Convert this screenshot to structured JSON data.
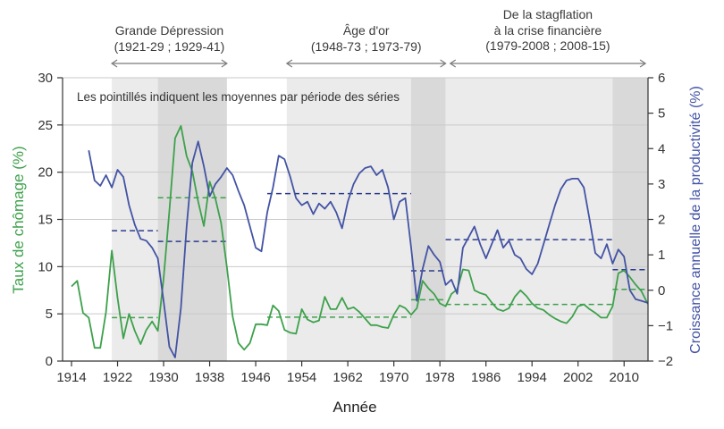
{
  "note": "Les pointillés indiquent les moyennes par période des séries",
  "annotations": [
    {
      "lines": [
        "Grande Dépression",
        "(1921-29 ; 1929-41)"
      ],
      "span_years": [
        1921,
        1941
      ]
    },
    {
      "lines": [
        "Âge d'or",
        "(1948-73 ; 1973-79)"
      ],
      "span_years": [
        1951.4,
        1979
      ]
    },
    {
      "lines": [
        "De la stagflation",
        "à la crise financière",
        "(1979-2008 ; 2008-15)"
      ],
      "span_years": [
        1979.8,
        2013.7
      ]
    }
  ],
  "chart_data": {
    "type": "line",
    "xlabel": "Année",
    "ylabel_left": "Taux de chômage (%)",
    "ylabel_right": "Croissance annuelle de la productivité (%)",
    "x_ticks": [
      1914,
      1922,
      1930,
      1938,
      1946,
      1954,
      1962,
      1970,
      1978,
      1986,
      1994,
      2002,
      2010
    ],
    "y_left": {
      "min": 0,
      "max": 30,
      "ticks": [
        0,
        5,
        10,
        15,
        20,
        25,
        30
      ]
    },
    "y_right": {
      "min": -2,
      "max": 6,
      "ticks": [
        -2,
        -1,
        0,
        1,
        2,
        3,
        4,
        5,
        6
      ]
    },
    "grid": true,
    "gridlines_left_values": [
      5,
      10,
      15,
      20,
      25,
      30
    ],
    "legend_position": "none",
    "bands": [
      {
        "from": 1921,
        "to": 1929,
        "shade": "light"
      },
      {
        "from": 1929,
        "to": 1941,
        "shade": "dark"
      },
      {
        "from": 1951.4,
        "to": 1973,
        "shade": "light"
      },
      {
        "from": 1973,
        "to": 1979,
        "shade": "dark"
      },
      {
        "from": 1979,
        "to": 2008,
        "shade": "light"
      },
      {
        "from": 2008,
        "to": 2015.3,
        "shade": "dark"
      }
    ],
    "series": [
      {
        "name": "Taux de chômage",
        "axis": "left",
        "points": [
          [
            1914,
            7.9
          ],
          [
            1915,
            8.5
          ],
          [
            1916,
            5.1
          ],
          [
            1917,
            4.6
          ],
          [
            1918,
            1.4
          ],
          [
            1919,
            1.4
          ],
          [
            1920,
            5.2
          ],
          [
            1921,
            11.7
          ],
          [
            1922,
            6.7
          ],
          [
            1923,
            2.4
          ],
          [
            1924,
            5.0
          ],
          [
            1925,
            3.2
          ],
          [
            1926,
            1.8
          ],
          [
            1927,
            3.3
          ],
          [
            1928,
            4.2
          ],
          [
            1929,
            3.2
          ],
          [
            1930,
            8.7
          ],
          [
            1931,
            15.9
          ],
          [
            1932,
            23.6
          ],
          [
            1933,
            24.9
          ],
          [
            1934,
            21.7
          ],
          [
            1935,
            20.1
          ],
          [
            1936,
            16.9
          ],
          [
            1937,
            14.3
          ],
          [
            1938,
            19.0
          ],
          [
            1939,
            17.2
          ],
          [
            1940,
            14.6
          ],
          [
            1941,
            9.9
          ],
          [
            1942,
            4.7
          ],
          [
            1943,
            1.9
          ],
          [
            1944,
            1.2
          ],
          [
            1945,
            1.9
          ],
          [
            1946,
            3.9
          ],
          [
            1947,
            3.9
          ],
          [
            1948,
            3.8
          ],
          [
            1949,
            5.9
          ],
          [
            1950,
            5.3
          ],
          [
            1951,
            3.3
          ],
          [
            1952,
            3.0
          ],
          [
            1953,
            2.9
          ],
          [
            1954,
            5.5
          ],
          [
            1955,
            4.4
          ],
          [
            1956,
            4.1
          ],
          [
            1957,
            4.3
          ],
          [
            1958,
            6.8
          ],
          [
            1959,
            5.5
          ],
          [
            1960,
            5.5
          ],
          [
            1961,
            6.7
          ],
          [
            1962,
            5.5
          ],
          [
            1963,
            5.7
          ],
          [
            1964,
            5.2
          ],
          [
            1965,
            4.5
          ],
          [
            1966,
            3.8
          ],
          [
            1967,
            3.8
          ],
          [
            1968,
            3.6
          ],
          [
            1969,
            3.5
          ],
          [
            1970,
            4.9
          ],
          [
            1971,
            5.9
          ],
          [
            1972,
            5.6
          ],
          [
            1973,
            4.9
          ],
          [
            1974,
            5.6
          ],
          [
            1975,
            8.5
          ],
          [
            1976,
            7.7
          ],
          [
            1977,
            7.1
          ],
          [
            1978,
            6.1
          ],
          [
            1979,
            5.8
          ],
          [
            1980,
            7.1
          ],
          [
            1981,
            7.6
          ],
          [
            1982,
            9.7
          ],
          [
            1983,
            9.6
          ],
          [
            1984,
            7.5
          ],
          [
            1985,
            7.2
          ],
          [
            1986,
            7.0
          ],
          [
            1987,
            6.2
          ],
          [
            1988,
            5.5
          ],
          [
            1989,
            5.3
          ],
          [
            1990,
            5.6
          ],
          [
            1991,
            6.8
          ],
          [
            1992,
            7.5
          ],
          [
            1993,
            6.9
          ],
          [
            1994,
            6.1
          ],
          [
            1995,
            5.6
          ],
          [
            1996,
            5.4
          ],
          [
            1997,
            4.9
          ],
          [
            1998,
            4.5
          ],
          [
            1999,
            4.2
          ],
          [
            2000,
            4.0
          ],
          [
            2001,
            4.7
          ],
          [
            2002,
            5.8
          ],
          [
            2003,
            6.0
          ],
          [
            2004,
            5.5
          ],
          [
            2005,
            5.1
          ],
          [
            2006,
            4.6
          ],
          [
            2007,
            4.6
          ],
          [
            2008,
            5.8
          ],
          [
            2009,
            9.3
          ],
          [
            2010,
            9.6
          ],
          [
            2011,
            8.9
          ],
          [
            2012,
            8.1
          ],
          [
            2013,
            7.4
          ],
          [
            2014,
            6.2
          ],
          [
            2015,
            5.3
          ]
        ]
      },
      {
        "name": "Croissance annuelle de la productivité",
        "axis": "right",
        "points": [
          [
            1917,
            3.95
          ],
          [
            1918,
            3.1
          ],
          [
            1919,
            2.95
          ],
          [
            1920,
            3.25
          ],
          [
            1921,
            2.9
          ],
          [
            1922,
            3.4
          ],
          [
            1923,
            3.2
          ],
          [
            1924,
            2.4
          ],
          [
            1925,
            1.85
          ],
          [
            1926,
            1.45
          ],
          [
            1927,
            1.4
          ],
          [
            1928,
            1.2
          ],
          [
            1929,
            0.9
          ],
          [
            1930,
            -0.3
          ],
          [
            1931,
            -1.6
          ],
          [
            1932,
            -1.9
          ],
          [
            1933,
            -0.5
          ],
          [
            1934,
            1.8
          ],
          [
            1935,
            3.6
          ],
          [
            1936,
            4.2
          ],
          [
            1937,
            3.5
          ],
          [
            1938,
            2.65
          ],
          [
            1939,
            3.0
          ],
          [
            1940,
            3.2
          ],
          [
            1941,
            3.45
          ],
          [
            1942,
            3.25
          ],
          [
            1943,
            2.8
          ],
          [
            1944,
            2.4
          ],
          [
            1945,
            1.8
          ],
          [
            1946,
            1.2
          ],
          [
            1947,
            1.1
          ],
          [
            1948,
            2.2
          ],
          [
            1949,
            2.9
          ],
          [
            1950,
            3.8
          ],
          [
            1951,
            3.7
          ],
          [
            1952,
            3.2
          ],
          [
            1953,
            2.6
          ],
          [
            1954,
            2.4
          ],
          [
            1955,
            2.5
          ],
          [
            1956,
            2.15
          ],
          [
            1957,
            2.45
          ],
          [
            1958,
            2.3
          ],
          [
            1959,
            2.5
          ],
          [
            1960,
            2.2
          ],
          [
            1961,
            1.75
          ],
          [
            1962,
            2.5
          ],
          [
            1963,
            3.0
          ],
          [
            1964,
            3.3
          ],
          [
            1965,
            3.45
          ],
          [
            1966,
            3.5
          ],
          [
            1967,
            3.25
          ],
          [
            1968,
            3.4
          ],
          [
            1969,
            2.9
          ],
          [
            1970,
            2.0
          ],
          [
            1971,
            2.5
          ],
          [
            1972,
            2.6
          ],
          [
            1973,
            1.2
          ],
          [
            1974,
            -0.3
          ],
          [
            1975,
            0.6
          ],
          [
            1976,
            1.25
          ],
          [
            1977,
            1.0
          ],
          [
            1978,
            0.8
          ],
          [
            1979,
            0.15
          ],
          [
            1980,
            0.3
          ],
          [
            1981,
            -0.1
          ],
          [
            1982,
            1.2
          ],
          [
            1983,
            1.5
          ],
          [
            1984,
            1.8
          ],
          [
            1985,
            1.3
          ],
          [
            1986,
            0.9
          ],
          [
            1987,
            1.3
          ],
          [
            1988,
            1.7
          ],
          [
            1989,
            1.2
          ],
          [
            1990,
            1.4
          ],
          [
            1991,
            1.0
          ],
          [
            1992,
            0.9
          ],
          [
            1993,
            0.6
          ],
          [
            1994,
            0.45
          ],
          [
            1995,
            0.75
          ],
          [
            1996,
            1.3
          ],
          [
            1997,
            1.85
          ],
          [
            1998,
            2.4
          ],
          [
            1999,
            2.85
          ],
          [
            2000,
            3.1
          ],
          [
            2001,
            3.15
          ],
          [
            2002,
            3.15
          ],
          [
            2003,
            2.9
          ],
          [
            2004,
            2.0
          ],
          [
            2005,
            1.05
          ],
          [
            2006,
            0.9
          ],
          [
            2007,
            1.3
          ],
          [
            2008,
            0.75
          ],
          [
            2009,
            1.15
          ],
          [
            2010,
            0.95
          ],
          [
            2011,
            0.0
          ],
          [
            2012,
            -0.25
          ],
          [
            2013,
            -0.3
          ],
          [
            2014,
            -0.35
          ],
          [
            2015,
            -0.42
          ]
        ]
      }
    ],
    "period_means": {
      "unemployment": [
        {
          "from": 1921,
          "to": 1929,
          "value": 4.6
        },
        {
          "from": 1929,
          "to": 1941,
          "value": 17.3
        },
        {
          "from": 1948,
          "to": 1973,
          "value": 4.65
        },
        {
          "from": 1973,
          "to": 1979,
          "value": 6.5
        },
        {
          "from": 1979,
          "to": 2008,
          "value": 6.0
        },
        {
          "from": 2008,
          "to": 2015.3,
          "value": 7.6
        }
      ],
      "productivity": [
        {
          "from": 1921,
          "to": 1929,
          "value": 1.68
        },
        {
          "from": 1929,
          "to": 1941,
          "value": 1.38
        },
        {
          "from": 1948,
          "to": 1973,
          "value": 2.73
        },
        {
          "from": 1973,
          "to": 1979,
          "value": 0.55
        },
        {
          "from": 1979,
          "to": 2008,
          "value": 1.43
        },
        {
          "from": 2008,
          "to": 2015.3,
          "value": 0.58
        }
      ]
    },
    "colors": {
      "unemployment": "#3da14b",
      "productivity": "#4353a4",
      "unemployment_mean": "#3da14b",
      "productivity_mean": "#2c3c8c",
      "band_light": "#ebebeb",
      "band_dark": "#d9d9d9",
      "grid": "#c9c9c9",
      "axis": "#333333",
      "arrow": "#7a7a7a",
      "tick_text": "#333333"
    }
  }
}
